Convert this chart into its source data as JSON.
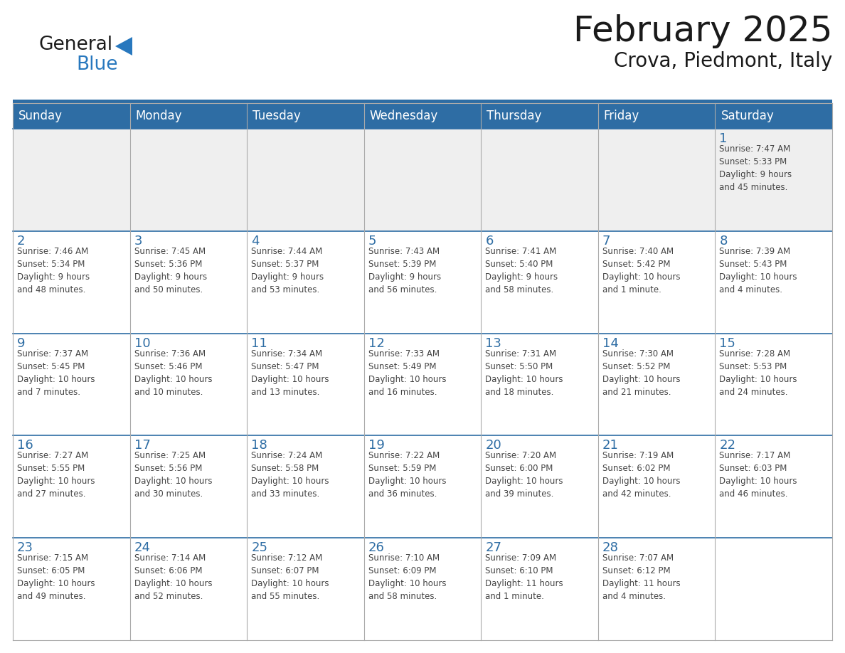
{
  "title": "February 2025",
  "subtitle": "Crova, Piedmont, Italy",
  "header_bg_color": "#2E6DA4",
  "header_text_color": "#FFFFFF",
  "week1_bg": "#EFEFEF",
  "normal_row_bg": "#FFFFFF",
  "day_names": [
    "Sunday",
    "Monday",
    "Tuesday",
    "Wednesday",
    "Thursday",
    "Friday",
    "Saturday"
  ],
  "title_color": "#1A1A1A",
  "subtitle_color": "#1A1A1A",
  "cell_text_color": "#444444",
  "day_number_color": "#2E6DA4",
  "border_color": "#AAAAAA",
  "row_divider_color": "#2E6DA4",
  "logo_black": "#1A1A1A",
  "logo_blue": "#2878BE",
  "triangle_color": "#2878BE",
  "weeks": [
    [
      {
        "day": 0,
        "info": ""
      },
      {
        "day": 0,
        "info": ""
      },
      {
        "day": 0,
        "info": ""
      },
      {
        "day": 0,
        "info": ""
      },
      {
        "day": 0,
        "info": ""
      },
      {
        "day": 0,
        "info": ""
      },
      {
        "day": 1,
        "info": "Sunrise: 7:47 AM\nSunset: 5:33 PM\nDaylight: 9 hours\nand 45 minutes."
      }
    ],
    [
      {
        "day": 2,
        "info": "Sunrise: 7:46 AM\nSunset: 5:34 PM\nDaylight: 9 hours\nand 48 minutes."
      },
      {
        "day": 3,
        "info": "Sunrise: 7:45 AM\nSunset: 5:36 PM\nDaylight: 9 hours\nand 50 minutes."
      },
      {
        "day": 4,
        "info": "Sunrise: 7:44 AM\nSunset: 5:37 PM\nDaylight: 9 hours\nand 53 minutes."
      },
      {
        "day": 5,
        "info": "Sunrise: 7:43 AM\nSunset: 5:39 PM\nDaylight: 9 hours\nand 56 minutes."
      },
      {
        "day": 6,
        "info": "Sunrise: 7:41 AM\nSunset: 5:40 PM\nDaylight: 9 hours\nand 58 minutes."
      },
      {
        "day": 7,
        "info": "Sunrise: 7:40 AM\nSunset: 5:42 PM\nDaylight: 10 hours\nand 1 minute."
      },
      {
        "day": 8,
        "info": "Sunrise: 7:39 AM\nSunset: 5:43 PM\nDaylight: 10 hours\nand 4 minutes."
      }
    ],
    [
      {
        "day": 9,
        "info": "Sunrise: 7:37 AM\nSunset: 5:45 PM\nDaylight: 10 hours\nand 7 minutes."
      },
      {
        "day": 10,
        "info": "Sunrise: 7:36 AM\nSunset: 5:46 PM\nDaylight: 10 hours\nand 10 minutes."
      },
      {
        "day": 11,
        "info": "Sunrise: 7:34 AM\nSunset: 5:47 PM\nDaylight: 10 hours\nand 13 minutes."
      },
      {
        "day": 12,
        "info": "Sunrise: 7:33 AM\nSunset: 5:49 PM\nDaylight: 10 hours\nand 16 minutes."
      },
      {
        "day": 13,
        "info": "Sunrise: 7:31 AM\nSunset: 5:50 PM\nDaylight: 10 hours\nand 18 minutes."
      },
      {
        "day": 14,
        "info": "Sunrise: 7:30 AM\nSunset: 5:52 PM\nDaylight: 10 hours\nand 21 minutes."
      },
      {
        "day": 15,
        "info": "Sunrise: 7:28 AM\nSunset: 5:53 PM\nDaylight: 10 hours\nand 24 minutes."
      }
    ],
    [
      {
        "day": 16,
        "info": "Sunrise: 7:27 AM\nSunset: 5:55 PM\nDaylight: 10 hours\nand 27 minutes."
      },
      {
        "day": 17,
        "info": "Sunrise: 7:25 AM\nSunset: 5:56 PM\nDaylight: 10 hours\nand 30 minutes."
      },
      {
        "day": 18,
        "info": "Sunrise: 7:24 AM\nSunset: 5:58 PM\nDaylight: 10 hours\nand 33 minutes."
      },
      {
        "day": 19,
        "info": "Sunrise: 7:22 AM\nSunset: 5:59 PM\nDaylight: 10 hours\nand 36 minutes."
      },
      {
        "day": 20,
        "info": "Sunrise: 7:20 AM\nSunset: 6:00 PM\nDaylight: 10 hours\nand 39 minutes."
      },
      {
        "day": 21,
        "info": "Sunrise: 7:19 AM\nSunset: 6:02 PM\nDaylight: 10 hours\nand 42 minutes."
      },
      {
        "day": 22,
        "info": "Sunrise: 7:17 AM\nSunset: 6:03 PM\nDaylight: 10 hours\nand 46 minutes."
      }
    ],
    [
      {
        "day": 23,
        "info": "Sunrise: 7:15 AM\nSunset: 6:05 PM\nDaylight: 10 hours\nand 49 minutes."
      },
      {
        "day": 24,
        "info": "Sunrise: 7:14 AM\nSunset: 6:06 PM\nDaylight: 10 hours\nand 52 minutes."
      },
      {
        "day": 25,
        "info": "Sunrise: 7:12 AM\nSunset: 6:07 PM\nDaylight: 10 hours\nand 55 minutes."
      },
      {
        "day": 26,
        "info": "Sunrise: 7:10 AM\nSunset: 6:09 PM\nDaylight: 10 hours\nand 58 minutes."
      },
      {
        "day": 27,
        "info": "Sunrise: 7:09 AM\nSunset: 6:10 PM\nDaylight: 11 hours\nand 1 minute."
      },
      {
        "day": 28,
        "info": "Sunrise: 7:07 AM\nSunset: 6:12 PM\nDaylight: 11 hours\nand 4 minutes."
      },
      {
        "day": 0,
        "info": ""
      }
    ]
  ]
}
